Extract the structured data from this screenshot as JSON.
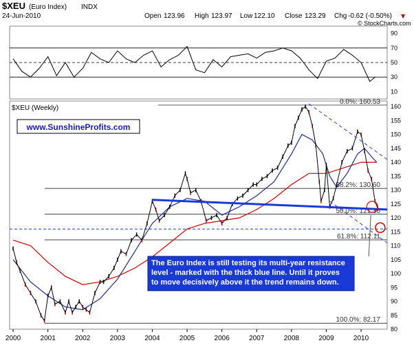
{
  "header": {
    "symbol": "$XEU",
    "name": "(Euro Index)",
    "exchange": "INDX",
    "date": "24-Jun-2010",
    "open_label": "Open",
    "open": "123.96",
    "high_label": "High",
    "high": "123.97",
    "low_label": "Low",
    "low": "122.10",
    "close_label": "Close",
    "close": "123.29",
    "chg_label": "Chg",
    "chg": "-0.62 (-0.50%)",
    "down_marker": "▼",
    "watermark": "© StockCharts.com"
  },
  "rsi_panel": {
    "ticks": [
      90,
      70,
      50,
      30,
      10
    ],
    "ylim": [
      0,
      100
    ],
    "ref_lines_solid": [
      70,
      30
    ],
    "ref_line_dashed": 50,
    "x": [
      2000.0,
      2000.25,
      2000.5,
      2000.75,
      2001.0,
      2001.25,
      2001.5,
      2001.75,
      2002.0,
      2002.25,
      2002.5,
      2002.75,
      2003.0,
      2003.25,
      2003.5,
      2003.75,
      2004.0,
      2004.25,
      2004.5,
      2004.75,
      2005.0,
      2005.25,
      2005.5,
      2005.75,
      2006.0,
      2006.25,
      2006.5,
      2006.75,
      2007.0,
      2007.25,
      2007.5,
      2007.75,
      2008.0,
      2008.25,
      2008.5,
      2008.75,
      2009.0,
      2009.25,
      2009.5,
      2009.75,
      2010.0,
      2010.25,
      2010.4
    ],
    "values": [
      55,
      38,
      30,
      42,
      58,
      32,
      50,
      30,
      42,
      64,
      55,
      50,
      66,
      55,
      50,
      60,
      66,
      44,
      54,
      60,
      72,
      40,
      36,
      54,
      44,
      58,
      60,
      62,
      56,
      64,
      66,
      70,
      66,
      56,
      40,
      28,
      52,
      56,
      68,
      60,
      50,
      24,
      30
    ]
  },
  "price_panel": {
    "label": "$XEU (Weekly)",
    "ticks": [
      160,
      155,
      150,
      145,
      140,
      135,
      130,
      125,
      120,
      115,
      110,
      105,
      100,
      95,
      90,
      85,
      80
    ],
    "ylim": [
      80,
      162
    ],
    "website": "www.SunshineProfits.com",
    "fib_levels": [
      {
        "label": "0.0%: 160.53",
        "value": 160.53
      },
      {
        "label": "38.2%: 130.60",
        "value": 130.6
      },
      {
        "label": "50.0%: 121.30",
        "value": 121.3
      },
      {
        "label": "61.8%: 112.11",
        "value": 112.11
      },
      {
        "label": "100.0%: 82.17",
        "value": 82.17
      }
    ],
    "horizontal_ref": 116.0,
    "annotation": "The Euro Index is still testing its multi-year resistance level - marked with the thick blue line. Until it proves to move decisively above it the trend remains down.",
    "colors": {
      "price": "#000000",
      "price_down": "#c00000",
      "ma_short": "#1a2a9a",
      "ma_long": "#d40000",
      "resistance": "#1a3ad8",
      "channel": "#2a3ad8",
      "annotation_bg": "#1a3ad8",
      "annotation_text": "#ffffff"
    }
  },
  "chart_data": {
    "type": "line",
    "x_label_ticks": [
      "2000",
      "2001",
      "2002",
      "2003",
      "2004",
      "2005",
      "2006",
      "2007",
      "2008",
      "2009",
      "2010"
    ],
    "xlim": [
      1999.9,
      2010.75
    ],
    "series": [
      {
        "x": [
          2000.0,
          2000.1,
          2000.2,
          2000.35,
          2000.5,
          2000.65,
          2000.8,
          2000.9,
          2001.0,
          2001.1,
          2001.2,
          2001.35,
          2001.5,
          2001.6,
          2001.7,
          2001.8,
          2001.9,
          2002.0,
          2002.1,
          2002.2,
          2002.35,
          2002.5,
          2002.6,
          2002.75,
          2002.9,
          2003.0,
          2003.1,
          2003.25,
          2003.4,
          2003.55,
          2003.7,
          2003.85,
          2004.0,
          2004.1,
          2004.2,
          2004.35,
          2004.5,
          2004.65,
          2004.8,
          2004.95,
          2005.0,
          2005.1,
          2005.25,
          2005.4,
          2005.55,
          2005.7,
          2005.85,
          2006.0,
          2006.15,
          2006.3,
          2006.45,
          2006.6,
          2006.75,
          2006.9,
          2007.0,
          2007.15,
          2007.3,
          2007.45,
          2007.6,
          2007.75,
          2007.9,
          2008.0,
          2008.1,
          2008.2,
          2008.3,
          2008.4,
          2008.5,
          2008.6,
          2008.7,
          2008.8,
          2008.85,
          2008.95,
          2009.0,
          2009.1,
          2009.2,
          2009.3,
          2009.45,
          2009.6,
          2009.75,
          2009.9,
          2010.0,
          2010.1,
          2010.2,
          2010.3,
          2010.4,
          2010.48
        ],
        "values": [
          109,
          104,
          101,
          96,
          93,
          90,
          85,
          83,
          92,
          95,
          89,
          90,
          86,
          90,
          86,
          88,
          90,
          88,
          87,
          86,
          93,
          97,
          97,
          99,
          102,
          105,
          108,
          107,
          112,
          114,
          112,
          118,
          126,
          123,
          119,
          121,
          124,
          128,
          130,
          136,
          134,
          129,
          130,
          126,
          119,
          120,
          121,
          118,
          120,
          125,
          127,
          128,
          130,
          132,
          132,
          134,
          135,
          137,
          138,
          142,
          146,
          147,
          153,
          156,
          159,
          160,
          158,
          153,
          146,
          133,
          126,
          130,
          139,
          124,
          127,
          132,
          140,
          144,
          145,
          151,
          150,
          144,
          137,
          134,
          126,
          123.3
        ]
      },
      {
        "x": [
          2000.0,
          2000.5,
          2001.0,
          2001.5,
          2002.0,
          2002.5,
          2003.0,
          2003.5,
          2004.0,
          2004.5,
          2005.0,
          2005.5,
          2006.0,
          2006.5,
          2007.0,
          2007.5,
          2008.0,
          2008.3,
          2008.6,
          2008.9,
          2009.1,
          2009.3,
          2009.6,
          2009.9,
          2010.1,
          2010.3,
          2010.45
        ],
        "values": [
          105,
          97,
          92,
          88,
          87,
          91,
          98,
          108,
          118,
          124,
          127,
          126,
          121,
          124,
          128,
          133,
          143,
          150,
          148,
          143,
          135,
          131,
          136,
          143,
          145,
          142,
          140
        ]
      },
      {
        "x": [
          2000.0,
          2000.5,
          2001.0,
          2001.5,
          2002.0,
          2002.5,
          2003.0,
          2003.5,
          2004.0,
          2004.5,
          2005.0,
          2005.5,
          2006.0,
          2006.5,
          2007.0,
          2007.5,
          2008.0,
          2008.5,
          2009.0,
          2009.5,
          2010.0,
          2010.45
        ],
        "values": [
          112,
          110,
          104,
          99,
          96,
          97,
          99,
          102,
          106,
          111,
          116,
          118,
          119,
          120,
          123,
          127,
          132,
          136,
          136,
          138,
          140,
          140
        ]
      }
    ],
    "resistance_line": {
      "x": [
        2004.0,
        2010.75
      ],
      "values": [
        126.5,
        123.0
      ]
    },
    "channel_upper": {
      "x": [
        2008.5,
        2010.75
      ],
      "values": [
        161,
        141
      ]
    },
    "channel_lower": {
      "x": [
        2009.1,
        2010.75
      ],
      "values": [
        126,
        111
      ]
    }
  }
}
